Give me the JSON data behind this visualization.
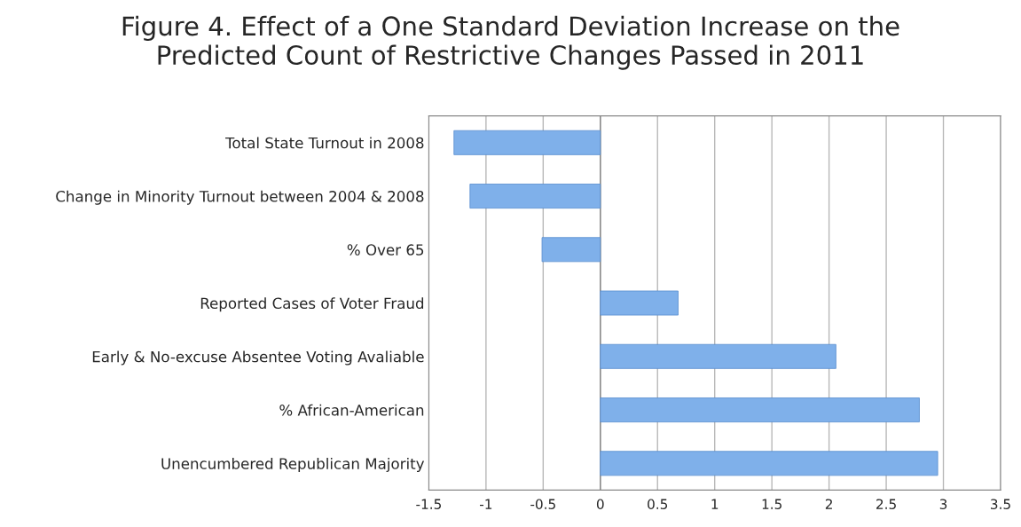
{
  "chart_data": {
    "type": "bar",
    "orientation": "horizontal",
    "title": "Figure 4. Effect of a One Standard Deviation Increase on the\nPredicted Count of Restrictive Changes Passed in 2011",
    "categories": [
      "Total State Turnout in 2008",
      "Change in Minority Turnout between 2004 & 2008",
      "% Over 65",
      "Reported Cases of Voter Fraud",
      "Early & No-excuse Absentee Voting Avaliable",
      "% African-American",
      "Unencumbered Republican Majority"
    ],
    "values": [
      -1.28,
      -1.14,
      -0.51,
      0.68,
      2.06,
      2.79,
      2.95
    ],
    "color": "#7fb0ea",
    "xlim": [
      -1.5,
      3.5
    ],
    "xticks": [
      -1.5,
      -1,
      -0.5,
      0,
      0.5,
      1,
      1.5,
      2,
      2.5,
      3,
      3.5
    ],
    "grid": "x",
    "legend": false
  }
}
